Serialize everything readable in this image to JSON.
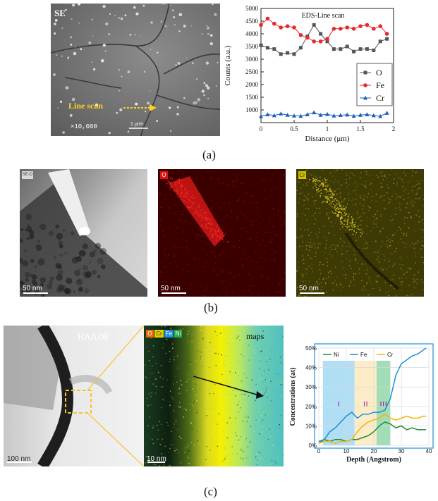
{
  "panel_a": {
    "sem": {
      "corner_label": "SE",
      "line_scan_label": "Line scan",
      "magnification": "×10,000",
      "scale_bar": "1 μm"
    },
    "caption": "(a)"
  },
  "panel_b": {
    "images": [
      {
        "tag": "SE-D",
        "scale_bar": "50 nm"
      },
      {
        "tag": "O",
        "scale_bar": "50 nm"
      },
      {
        "tag": "Cr",
        "scale_bar": "50 nm"
      }
    ],
    "caption": "(b)"
  },
  "panel_c": {
    "haadf": {
      "label": "HAADF",
      "scale_bar": "100 nm"
    },
    "maps": {
      "label": "maps",
      "tags": [
        "O",
        "Cr",
        "Fe",
        "Ni"
      ],
      "scale_bar": "10 nm"
    },
    "caption": "(c)"
  },
  "colors": {
    "eds_O": "#555555",
    "eds_Fe": "#e8282b",
    "eds_Cr": "#1f5fbf",
    "c_Ni": "#1e8a3c",
    "c_Fe": "#1f8fd8",
    "c_Cr": "#f4b400"
  },
  "chart_data": [
    {
      "type": "line",
      "title": "EDS-Line scan",
      "xlabel": "Distance (μm)",
      "ylabel": "Counts (a.u.)",
      "xlim": [
        0,
        2
      ],
      "ylim": [
        500,
        5000
      ],
      "xticks": [
        "0",
        "0.5",
        "1",
        "1.5",
        "2"
      ],
      "xtick_values": [
        0,
        0.5,
        1,
        1.5,
        2
      ],
      "yticks": [
        "1000",
        "1500",
        "2000",
        "2500",
        "3000",
        "3500",
        "4000",
        "4500",
        "5000"
      ],
      "ytick_values": [
        1000,
        1500,
        2000,
        2500,
        3000,
        3500,
        4000,
        4500,
        5000
      ],
      "legend_position": "bottom-right",
      "x": [
        0,
        0.1,
        0.2,
        0.3,
        0.4,
        0.5,
        0.6,
        0.7,
        0.8,
        0.9,
        1.0,
        1.1,
        1.2,
        1.3,
        1.4,
        1.5,
        1.6,
        1.7,
        1.8,
        1.9
      ],
      "series": [
        {
          "name": "O",
          "marker": "square",
          "values": [
            3550,
            3450,
            3400,
            3200,
            3250,
            3200,
            3450,
            3900,
            4350,
            4000,
            3700,
            3400,
            3400,
            3500,
            3300,
            3400,
            3400,
            3350,
            3700,
            3800
          ]
        },
        {
          "name": "Fe",
          "marker": "circle",
          "values": [
            4350,
            4600,
            4400,
            4250,
            4300,
            4250,
            3950,
            3850,
            3700,
            3700,
            3800,
            4200,
            4200,
            4250,
            4200,
            4300,
            4350,
            4200,
            4300,
            4000
          ]
        },
        {
          "name": "Cr",
          "marker": "triangle",
          "values": [
            750,
            820,
            780,
            850,
            800,
            770,
            760,
            820,
            900,
            800,
            830,
            770,
            790,
            810,
            760,
            800,
            820,
            780,
            750,
            880
          ]
        }
      ]
    },
    {
      "type": "line",
      "title": "",
      "xlabel": "Depth (Angstrom)",
      "ylabel": "Concentrations (at)",
      "xlim": [
        0,
        40
      ],
      "ylim": [
        0,
        50
      ],
      "xticks": [
        "0",
        "10",
        "20",
        "30",
        "40"
      ],
      "xtick_values": [
        0,
        10,
        20,
        30,
        40
      ],
      "yticks": [
        "0%",
        "10%",
        "20%",
        "30%",
        "40%",
        "50%"
      ],
      "ytick_values": [
        0,
        10,
        20,
        30,
        40,
        50
      ],
      "legend_position": "top-left",
      "grid": true,
      "regions": [
        {
          "label": "I",
          "from": 1.5,
          "to": 13
        },
        {
          "label": "II",
          "from": 13,
          "to": 21
        },
        {
          "label": "III",
          "from": 21,
          "to": 26
        }
      ],
      "x": [
        0,
        2,
        4,
        6,
        8,
        10,
        12,
        14,
        16,
        18,
        20,
        22,
        24,
        26,
        28,
        30,
        32,
        34,
        36,
        38,
        39
      ],
      "series": [
        {
          "name": "Ni",
          "values": [
            2,
            3,
            2,
            3,
            3,
            2,
            3,
            3,
            4,
            5,
            7,
            10,
            12,
            11,
            9,
            10,
            8,
            9,
            8,
            8,
            8
          ]
        },
        {
          "name": "Fe",
          "values": [
            1,
            3,
            7,
            9,
            12,
            15,
            17,
            14,
            16,
            16,
            17,
            17,
            18,
            24,
            36,
            42,
            44,
            46,
            47,
            49,
            50
          ]
        },
        {
          "name": "Cr",
          "values": [
            1,
            2,
            2,
            1,
            2,
            2,
            3,
            7,
            10,
            12,
            13,
            14,
            16,
            14,
            13,
            14,
            15,
            14,
            14,
            15,
            15
          ]
        }
      ]
    }
  ]
}
